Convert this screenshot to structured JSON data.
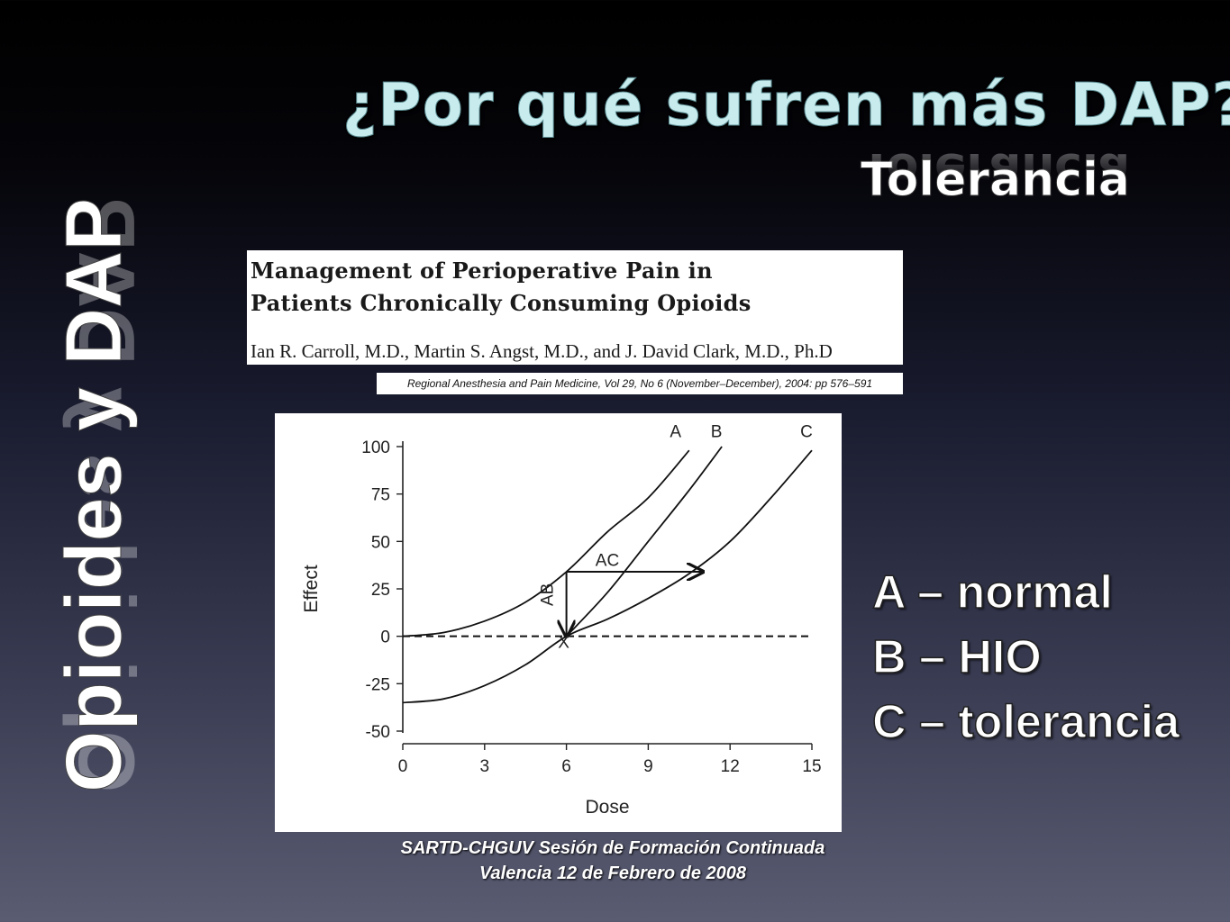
{
  "slide": {
    "title": "¿Por qué sufren más DAP?",
    "subtitle": "Tolerancia",
    "vertical_title": "Opioides y DAP"
  },
  "paper": {
    "title_line1": "Management of Perioperative Pain in",
    "title_line2": "Patients Chronically Consuming Opioids",
    "authors": "Ian R. Carroll, M.D., Martin S. Angst, M.D., and J. David Clark, M.D., Ph.D",
    "journal": "Regional Anesthesia and Pain Medicine, Vol 29, No 6 (November–December), 2004: pp 576–591"
  },
  "legend": {
    "a": "A – normal",
    "b": "B – HIO",
    "c": "C – tolerancia"
  },
  "footer": {
    "line1": "SARTD-CHGUV Sesión de Formación Continuada",
    "line2": "Valencia  12 de Febrero de 2008"
  },
  "chart_data": {
    "type": "line",
    "xlabel": "Dose",
    "ylabel": "Effect",
    "xlim": [
      0,
      15
    ],
    "ylim": [
      -50,
      100
    ],
    "xticks": [
      0,
      3,
      6,
      9,
      12,
      15
    ],
    "yticks": [
      100,
      75,
      50,
      25,
      0,
      -25,
      -50
    ],
    "series": [
      {
        "name": "A",
        "x": [
          0,
          1.5,
          3,
          4.5,
          6,
          7.5,
          9,
          10.5
        ],
        "y": [
          0,
          2,
          8,
          18,
          34,
          55,
          73,
          98
        ]
      },
      {
        "name": "B",
        "x": [
          6,
          7.5,
          9,
          10.5,
          11.7
        ],
        "y": [
          0,
          23,
          50,
          77,
          100
        ]
      },
      {
        "name": "C",
        "x": [
          0,
          1.5,
          3,
          4.5,
          6,
          7.5,
          9,
          10.5,
          12,
          13.5,
          15
        ],
        "y": [
          -35,
          -33,
          -26,
          -15,
          0,
          9,
          20,
          33,
          50,
          73,
          98
        ]
      }
    ],
    "baseline": {
      "style": "dashed",
      "y": 0
    },
    "annotations": [
      {
        "text": "A",
        "x": 10,
        "y": 105
      },
      {
        "text": "B",
        "x": 11.5,
        "y": 105
      },
      {
        "text": "C",
        "x": 14.8,
        "y": 105
      },
      {
        "text": "AC",
        "x": 7.5,
        "y": 37
      },
      {
        "text": "AB",
        "x": 5.5,
        "y": 22
      },
      {
        "text": "X",
        "x": 5.9,
        "y": -6
      }
    ],
    "arrows": [
      {
        "label": "AC",
        "from": [
          6,
          34
        ],
        "to": [
          11,
          34
        ]
      },
      {
        "label": "AB",
        "from": [
          6,
          34
        ],
        "to": [
          6,
          0
        ]
      }
    ]
  }
}
